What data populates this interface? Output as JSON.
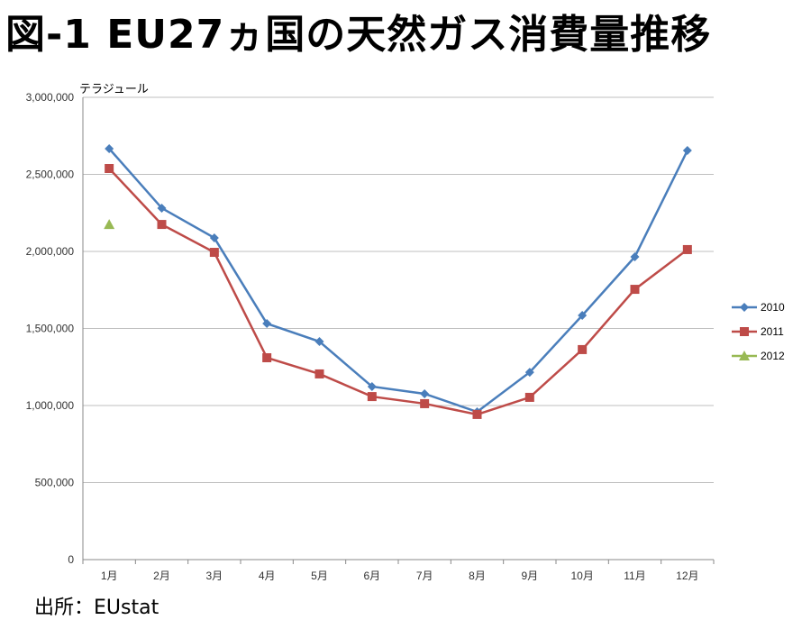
{
  "title": "図-1 EU27ヵ国の天然ガス消費量推移",
  "source": "出所：EUstat",
  "chart_data": {
    "type": "line",
    "title": "図-1 EU27ヵ国の天然ガス消費量推移",
    "ylabel": "テラジュール",
    "xlabel": "",
    "ylim": [
      0,
      3000000
    ],
    "yticks": [
      0,
      500000,
      1000000,
      1500000,
      2000000,
      2500000,
      3000000
    ],
    "ytick_labels": [
      "0",
      "500,000",
      "1,000,000",
      "1,500,000",
      "2,000,000",
      "2,500,000",
      "3,000,000"
    ],
    "categories": [
      "1月",
      "2月",
      "3月",
      "4月",
      "5月",
      "6月",
      "7月",
      "8月",
      "9月",
      "10月",
      "11月",
      "12月"
    ],
    "grid": true,
    "legend_position": "right",
    "series": [
      {
        "name": "2010",
        "color": "#4a7ebb",
        "marker": "diamond",
        "values": [
          2667000,
          2281000,
          2088000,
          1532000,
          1415000,
          1123000,
          1076000,
          959000,
          1216000,
          1585000,
          1965000,
          2655000
        ]
      },
      {
        "name": "2011",
        "color": "#be4b48",
        "marker": "square",
        "values": [
          2538000,
          2175000,
          1994000,
          1310000,
          1205000,
          1058000,
          1012000,
          942000,
          1053000,
          1363000,
          1754000,
          2012000
        ]
      },
      {
        "name": "2012",
        "color": "#98b954",
        "marker": "triangle",
        "values": [
          2175000,
          null,
          null,
          null,
          null,
          null,
          null,
          null,
          null,
          null,
          null,
          null
        ]
      }
    ]
  }
}
